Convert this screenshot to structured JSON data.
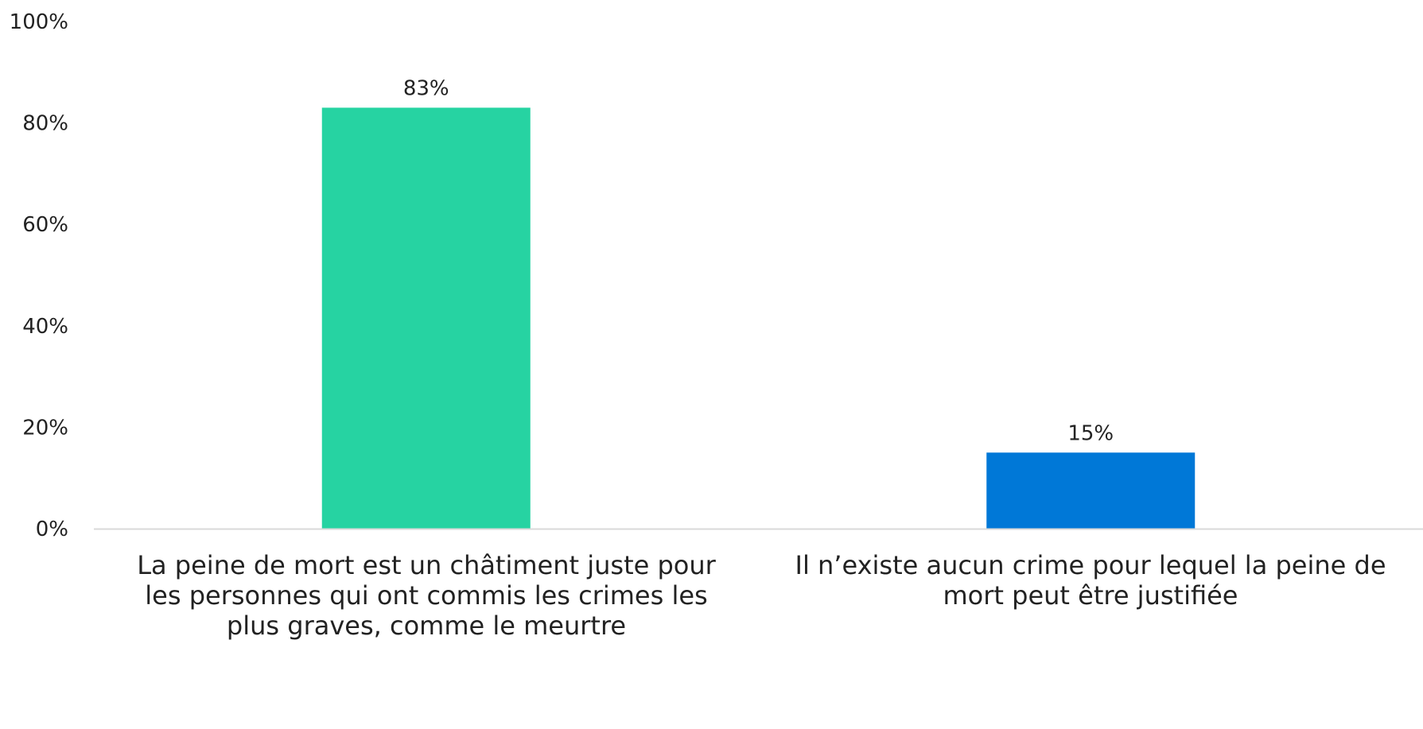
{
  "chart_data": {
    "type": "bar",
    "categories": [
      "La peine de mort est un châtiment juste pour les personnes qui ont commis les crimes les plus graves, comme le meurtre",
      "Il n’existe aucun crime pour lequel la peine de mort peut être justifiée"
    ],
    "values": [
      83,
      15
    ],
    "value_labels": [
      "83%",
      "15%"
    ],
    "bar_colors": [
      "#26d3a2",
      "#0078d7"
    ],
    "ylim": [
      0,
      100
    ],
    "yticks": [
      {
        "value": 0,
        "label": "0%"
      },
      {
        "value": 20,
        "label": "20%"
      },
      {
        "value": 40,
        "label": "40%"
      },
      {
        "value": 60,
        "label": "60%"
      },
      {
        "value": 80,
        "label": "80%"
      },
      {
        "value": 100,
        "label": "100%"
      }
    ],
    "grid": false,
    "axis_color": "#d9d9d9"
  }
}
